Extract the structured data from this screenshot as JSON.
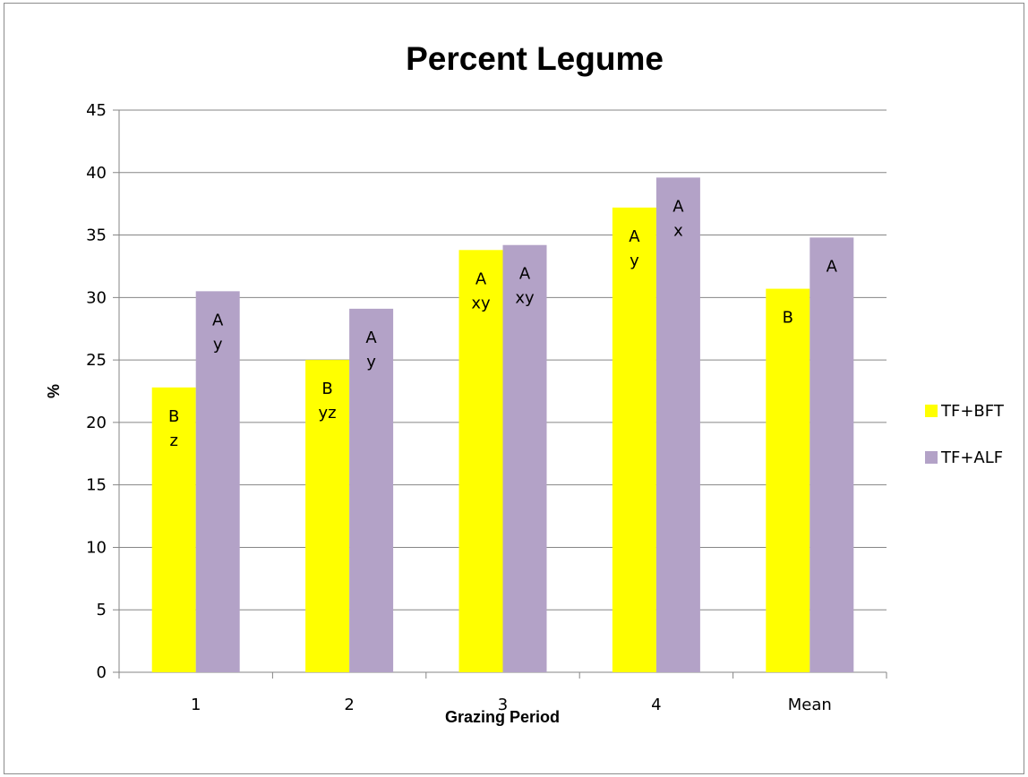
{
  "chart_data": {
    "type": "bar",
    "title": "Percent Legume",
    "xlabel": "Grazing Period",
    "ylabel": "%",
    "ylim": [
      0,
      45
    ],
    "yticks": [
      0,
      5,
      10,
      15,
      20,
      25,
      30,
      35,
      40,
      45
    ],
    "grid": true,
    "legend_position": "right",
    "categories": [
      "1",
      "2",
      "3",
      "4",
      "Mean"
    ],
    "series": [
      {
        "name": "TF+BFT",
        "color": "#ffff00",
        "values": [
          22.8,
          25.0,
          33.8,
          37.2,
          30.7
        ],
        "labels": [
          [
            "B",
            "z"
          ],
          [
            "B",
            "yz"
          ],
          [
            "A",
            "xy"
          ],
          [
            "A",
            "y"
          ],
          [
            "B"
          ]
        ]
      },
      {
        "name": "TF+ALF",
        "color": "#b3a2c7",
        "values": [
          30.5,
          29.1,
          34.2,
          39.6,
          34.8
        ],
        "labels": [
          [
            "A",
            "y"
          ],
          [
            "A",
            "y"
          ],
          [
            "A",
            "xy"
          ],
          [
            "A",
            "x"
          ],
          [
            "A"
          ]
        ]
      }
    ]
  }
}
